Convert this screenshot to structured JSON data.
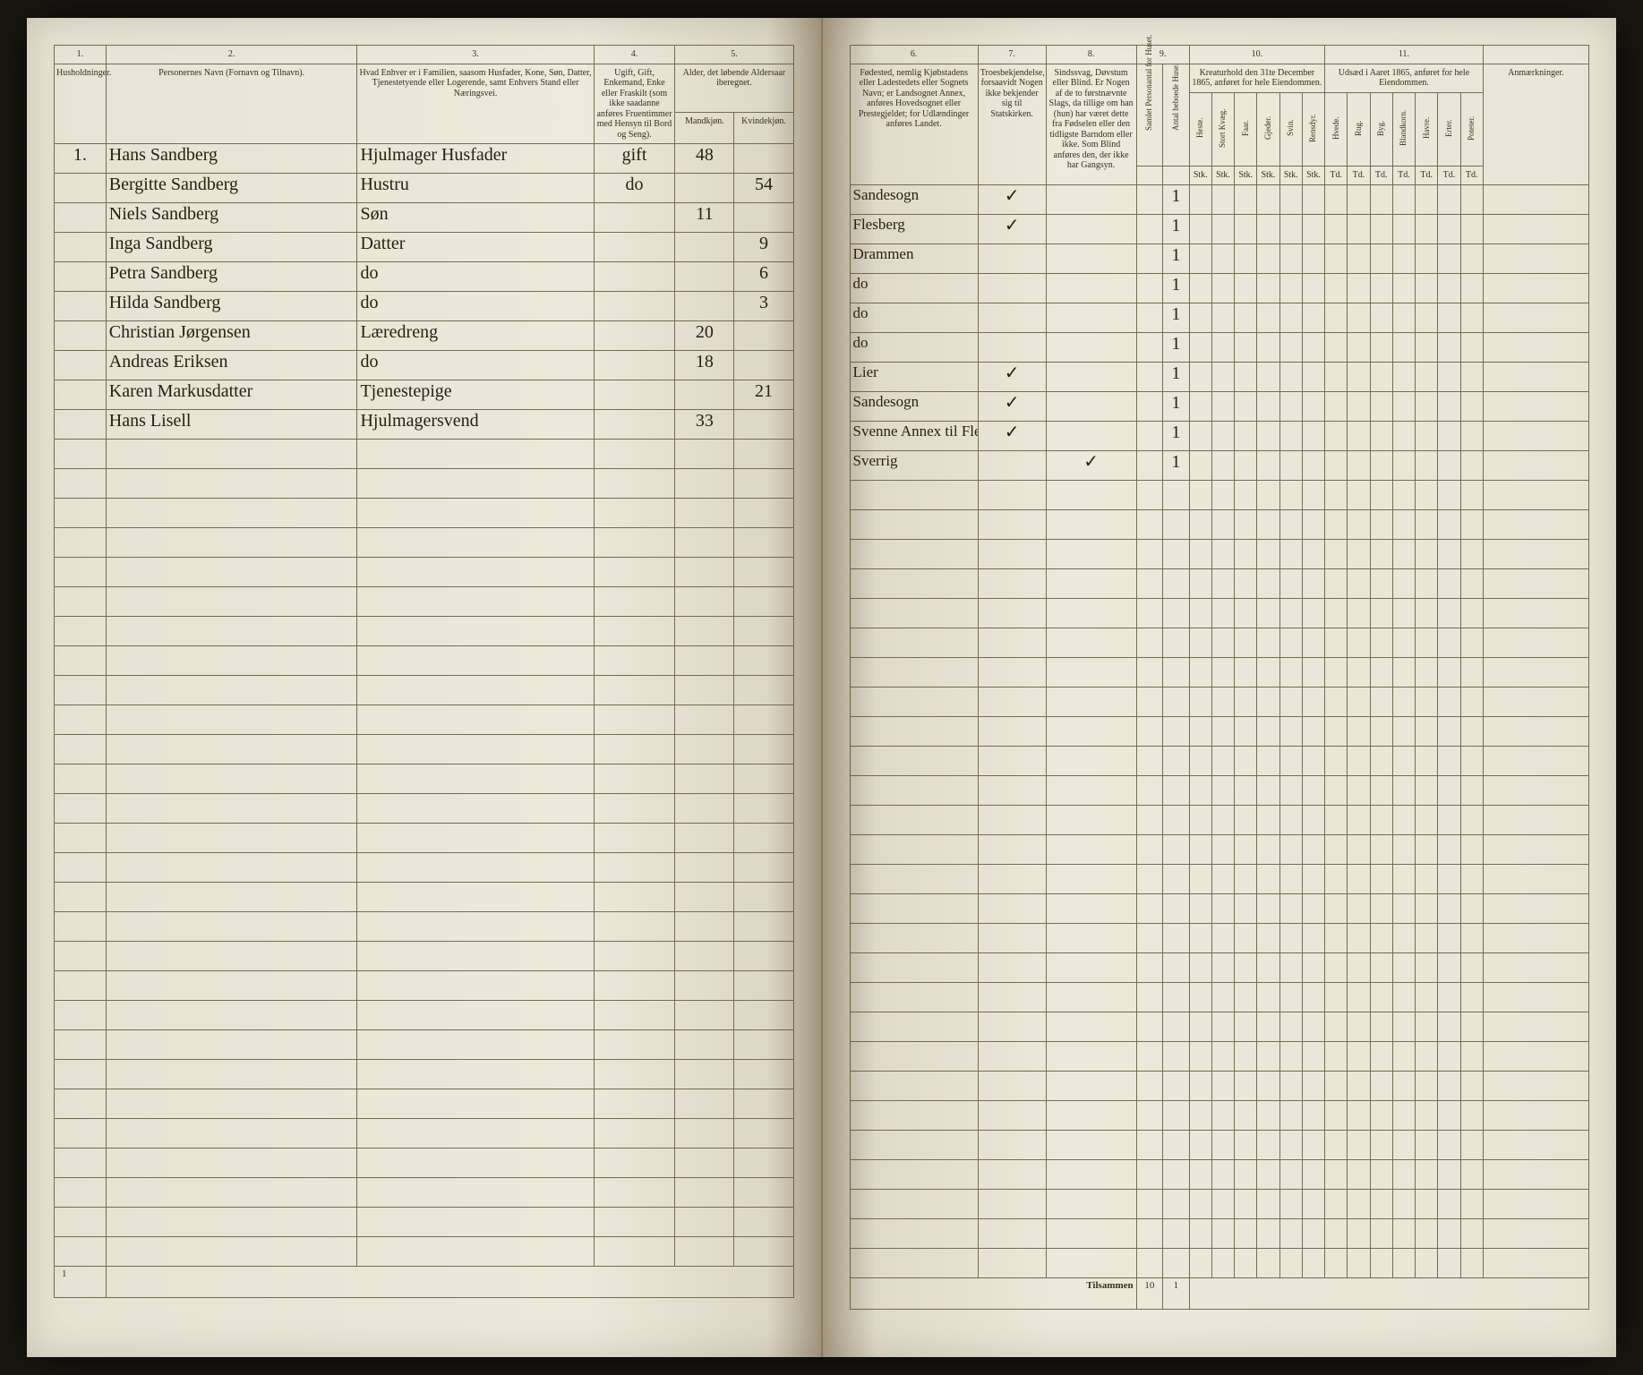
{
  "colors": {
    "page_bg": "#ece8db",
    "rule_line": "#7a6a4a",
    "ink": "#2a2010",
    "print_ink": "#3a2f1a",
    "outer_bg": "#1a1812"
  },
  "left_page": {
    "column_numbers": [
      "1.",
      "2.",
      "3.",
      "4.",
      "5."
    ],
    "headers": {
      "col1": "Husholdninger.",
      "col2": "Personernes Navn (Fornavn og Tilnavn).",
      "col3": "Hvad Enhver er i Familien, saasom Husfader, Kone, Søn, Datter, Tjenestetyende eller Logerende, samt Enhvers Stand eller Næringsvei.",
      "col4": "Ugift, Gift, Enkemand, Enke eller Fraskilt (som ikke saadanne anføres Fruentimmer med Hensyn til Bord og Seng).",
      "col5_top": "Alder, det løbende Aldersaar iberegnet.",
      "col5a": "Mandkjøn.",
      "col5b": "Kvindekjøn."
    },
    "rows": [
      {
        "num": "1.",
        "name": "Hans Sandberg",
        "role": "Hjulmager Husfader",
        "status": "gift",
        "age_m": "48",
        "age_f": ""
      },
      {
        "num": "",
        "name": "Bergitte Sandberg",
        "role": "Hustru",
        "status": "do",
        "age_m": "",
        "age_f": "54"
      },
      {
        "num": "",
        "name": "Niels Sandberg",
        "role": "Søn",
        "status": "",
        "age_m": "11",
        "age_f": ""
      },
      {
        "num": "",
        "name": "Inga Sandberg",
        "role": "Datter",
        "status": "",
        "age_m": "",
        "age_f": "9"
      },
      {
        "num": "",
        "name": "Petra Sandberg",
        "role": "do",
        "status": "",
        "age_m": "",
        "age_f": "6"
      },
      {
        "num": "",
        "name": "Hilda Sandberg",
        "role": "do",
        "status": "",
        "age_m": "",
        "age_f": "3"
      },
      {
        "num": "",
        "name": "Christian Jørgensen",
        "role": "Læredreng",
        "status": "",
        "age_m": "20",
        "age_f": ""
      },
      {
        "num": "",
        "name": "Andreas Eriksen",
        "role": "do",
        "status": "",
        "age_m": "18",
        "age_f": ""
      },
      {
        "num": "",
        "name": "Karen Markusdatter",
        "role": "Tjenestepige",
        "status": "",
        "age_m": "",
        "age_f": "21"
      },
      {
        "num": "",
        "name": "Hans Lisell",
        "role": "Hjulmagersvend",
        "status": "",
        "age_m": "33",
        "age_f": ""
      }
    ],
    "footer_mark": "1",
    "empty_rows": 28
  },
  "right_page": {
    "column_numbers": [
      "6.",
      "7.",
      "8.",
      "9.",
      "10.",
      "11."
    ],
    "headers": {
      "col6": "Fødested, nemlig Kjøbstadens eller Ladestedets eller Sognets Navn; er Landsognet Annex, anføres Hovedsognet eller Prestegjeldet; for Udlændinger anføres Landet.",
      "col7": "Troesbekjendelse, forsaavidt Nogen ikke bekjender sig til Statskirken.",
      "col8": "Sindssvag, Døvstum eller Blind. Er Nogen af de to førstnævnte Slags, da tillige om han (hun) har været dette fra Fødselen eller den tidligste Barndom eller ikke. Som Blind anføres den, der ikke har Gangsyn.",
      "col9_a": "Samlet Personantal for Huset.",
      "col9_b": "Antal beboede Huse.",
      "col10_top": "Kreaturhold den 31te December 1865, anføret for hele Eiendommen.",
      "col10_sub": [
        "Heste.",
        "Stort Kvæg.",
        "Faar.",
        "Gjeder.",
        "Svin.",
        "Rensdyr."
      ],
      "col11_top": "Udsæd i Aaret 1865, anføret for hele Eiendommen.",
      "col11_sub": [
        "Hvede.",
        "Rug.",
        "Byg.",
        "Blandkorn.",
        "Havre.",
        "Erter.",
        "Poteter."
      ],
      "col12": "Anmærkninger."
    },
    "unit_row": {
      "col10": [
        "Stk.",
        "Stk.",
        "Stk.",
        "Stk.",
        "Stk.",
        "Stk."
      ],
      "col11": [
        "Td.",
        "Td.",
        "Td.",
        "Td.",
        "Td.",
        "Td.",
        "Td."
      ]
    },
    "rows": [
      {
        "birth": "Sandesogn",
        "faith": "✓",
        "cond": "",
        "p": "",
        "h": "1",
        "k": [
          "",
          "",
          "",
          "",
          "",
          ""
        ],
        "u": [
          "",
          "",
          "",
          "",
          "",
          "",
          ""
        ],
        "rem": ""
      },
      {
        "birth": "Flesberg",
        "faith": "✓",
        "cond": "",
        "p": "",
        "h": "1",
        "k": [
          "",
          "",
          "",
          "",
          "",
          ""
        ],
        "u": [
          "",
          "",
          "",
          "",
          "",
          "",
          ""
        ],
        "rem": ""
      },
      {
        "birth": "Drammen",
        "faith": "",
        "cond": "",
        "p": "",
        "h": "1",
        "k": [
          "",
          "",
          "",
          "",
          "",
          ""
        ],
        "u": [
          "",
          "",
          "",
          "",
          "",
          "",
          ""
        ],
        "rem": ""
      },
      {
        "birth": "do",
        "faith": "",
        "cond": "",
        "p": "",
        "h": "1",
        "k": [
          "",
          "",
          "",
          "",
          "",
          ""
        ],
        "u": [
          "",
          "",
          "",
          "",
          "",
          "",
          ""
        ],
        "rem": ""
      },
      {
        "birth": "do",
        "faith": "",
        "cond": "",
        "p": "",
        "h": "1",
        "k": [
          "",
          "",
          "",
          "",
          "",
          ""
        ],
        "u": [
          "",
          "",
          "",
          "",
          "",
          "",
          ""
        ],
        "rem": ""
      },
      {
        "birth": "do",
        "faith": "",
        "cond": "",
        "p": "",
        "h": "1",
        "k": [
          "",
          "",
          "",
          "",
          "",
          ""
        ],
        "u": [
          "",
          "",
          "",
          "",
          "",
          "",
          ""
        ],
        "rem": ""
      },
      {
        "birth": "Lier",
        "faith": "✓",
        "cond": "",
        "p": "",
        "h": "1",
        "k": [
          "",
          "",
          "",
          "",
          "",
          ""
        ],
        "u": [
          "",
          "",
          "",
          "",
          "",
          "",
          ""
        ],
        "rem": ""
      },
      {
        "birth": "Sandesogn",
        "faith": "✓",
        "cond": "",
        "p": "",
        "h": "1",
        "k": [
          "",
          "",
          "",
          "",
          "",
          ""
        ],
        "u": [
          "",
          "",
          "",
          "",
          "",
          "",
          ""
        ],
        "rem": ""
      },
      {
        "birth": "Svenne Annex til Flesberg",
        "faith": "✓",
        "cond": "",
        "p": "",
        "h": "1",
        "k": [
          "",
          "",
          "",
          "",
          "",
          ""
        ],
        "u": [
          "",
          "",
          "",
          "",
          "",
          "",
          ""
        ],
        "rem": ""
      },
      {
        "birth": "Sverrig",
        "faith": "",
        "cond": "✓",
        "p": "",
        "h": "1",
        "k": [
          "",
          "",
          "",
          "",
          "",
          ""
        ],
        "u": [
          "",
          "",
          "",
          "",
          "",
          "",
          ""
        ],
        "rem": ""
      }
    ],
    "footer": {
      "label": "Tilsammen",
      "sum_p": "10",
      "sum_h": "1"
    },
    "empty_rows": 27
  }
}
